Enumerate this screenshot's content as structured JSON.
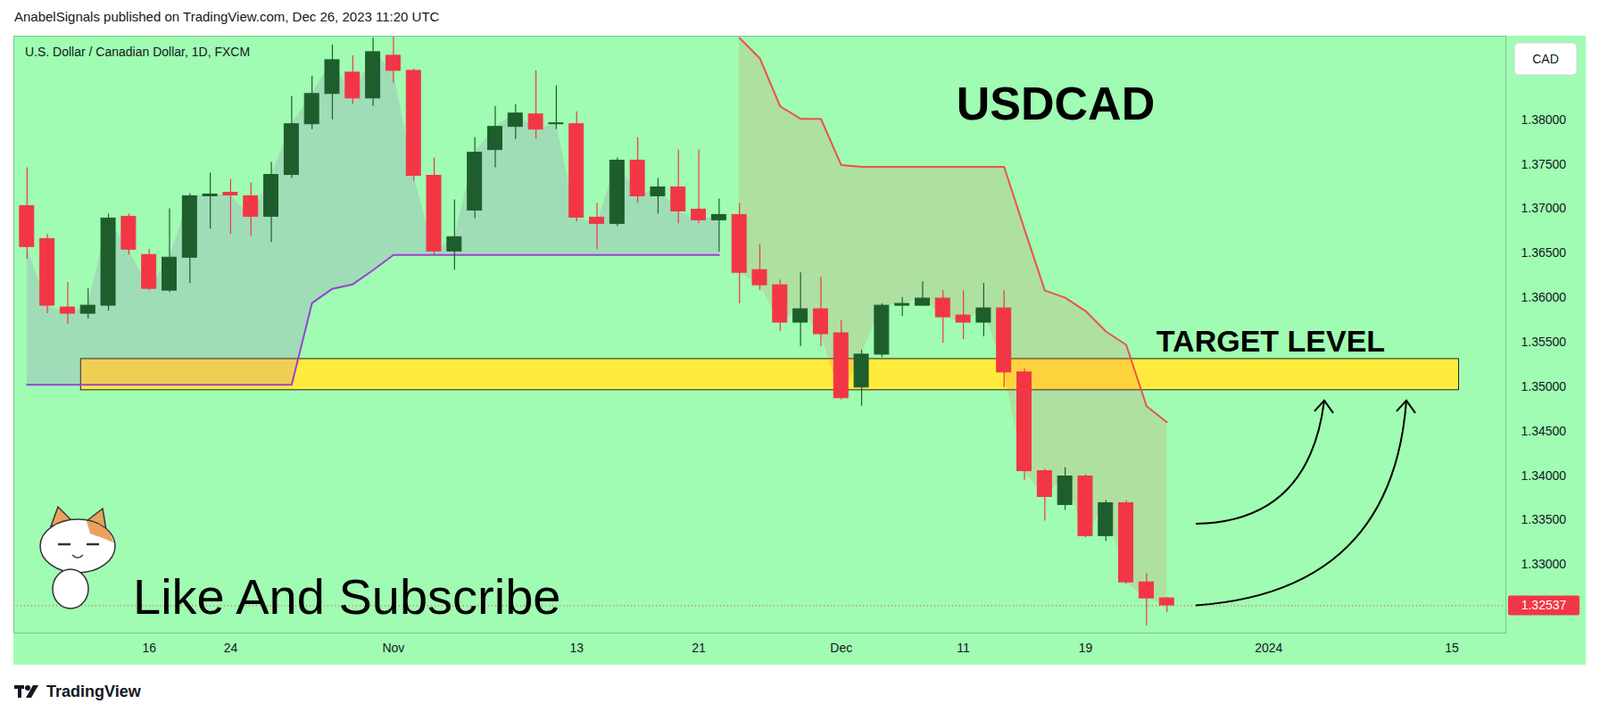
{
  "header": "AnabelSignals published on TradingView.com, Dec 26, 2023 11:20 UTC",
  "footer": "TradingView",
  "chart_data": {
    "type": "candlestick",
    "title": "USDCAD",
    "subtitle": "U.S. Dollar / Canadian Dollar, 1D, FXCM",
    "currency": "CAD",
    "annotations": [
      "Like And Subscribe"
    ],
    "categories": [
      null,
      null,
      null,
      null,
      null,
      null,
      "16",
      null,
      null,
      null,
      "24",
      null,
      null,
      null,
      null,
      null,
      null,
      null,
      "Nov",
      null,
      null,
      null,
      null,
      null,
      null,
      null,
      null,
      "13",
      null,
      null,
      null,
      null,
      null,
      "21",
      null,
      null,
      null,
      null,
      null,
      null,
      "Dec",
      null,
      null,
      null,
      null,
      null,
      "11",
      null,
      null,
      null,
      null,
      null,
      "19",
      null,
      null,
      null,
      null,
      null,
      null,
      null,
      null,
      "2024",
      null,
      null,
      null,
      null,
      null,
      null,
      null,
      null,
      "15",
      null,
      null
    ],
    "open": [
      1.3703,
      1.3666,
      1.3589,
      1.3582,
      1.3591,
      1.3691,
      1.3648,
      1.3608,
      1.3645,
      1.3714,
      1.3718,
      1.3714,
      1.3691,
      1.3738,
      1.3795,
      1.3829,
      1.3853,
      1.3824,
      1.3872,
      1.3855,
      1.3737,
      1.3652,
      1.3698,
      1.3766,
      1.3792,
      1.3806,
      1.3795,
      1.3795,
      1.369,
      1.3683,
      1.3754,
      1.3714,
      1.3724,
      1.3699,
      1.3687,
      1.3693,
      1.3631,
      1.3614,
      1.3572,
      1.3587,
      1.356,
      1.3499,
      1.3536,
      1.3591,
      1.3591,
      1.3599,
      1.358,
      1.3572,
      1.3588,
      1.3516,
      1.3405,
      1.3367,
      1.3399,
      1.3332,
      1.3369,
      1.328,
      1.3262,
      null,
      null,
      null,
      null,
      null,
      null,
      null,
      null,
      null,
      null,
      null,
      null,
      null,
      null,
      null,
      null
    ],
    "high": [
      1.3746,
      1.3671,
      1.3617,
      1.361,
      1.3694,
      1.3694,
      1.3654,
      1.37,
      1.3717,
      1.374,
      1.3733,
      1.3729,
      1.3752,
      1.3826,
      1.3849,
      1.3884,
      1.3872,
      1.3892,
      1.3893,
      1.3857,
      1.3757,
      1.371,
      1.378,
      1.3815,
      1.3817,
      1.3855,
      1.3838,
      1.3809,
      1.3706,
      1.3757,
      1.378,
      1.3734,
      1.3766,
      1.3766,
      1.3711,
      1.3706,
      1.366,
      1.362,
      1.3628,
      1.3623,
      1.3574,
      1.3541,
      1.3593,
      1.36,
      1.3618,
      1.3608,
      1.3608,
      1.3616,
      1.3608,
      1.352,
      1.3407,
      1.3409,
      1.3401,
      1.3372,
      1.3372,
      1.329,
      1.3263,
      null,
      null,
      null,
      null,
      null,
      null,
      null,
      null,
      null,
      null,
      null,
      null,
      null,
      null,
      null,
      null
    ],
    "low": [
      1.3643,
      1.3582,
      1.357,
      1.3576,
      1.3585,
      1.3648,
      1.3608,
      1.3606,
      1.3616,
      1.3677,
      1.3671,
      1.3669,
      1.3662,
      1.3734,
      1.3789,
      1.38,
      1.3817,
      1.3815,
      1.3841,
      1.3731,
      1.3648,
      1.3631,
      1.3689,
      1.3746,
      1.3778,
      1.3778,
      1.3789,
      1.3685,
      1.3654,
      1.368,
      1.3706,
      1.3694,
      1.3683,
      1.3683,
      1.3651,
      1.3593,
      1.3608,
      1.3562,
      1.3545,
      1.3545,
      1.3485,
      1.3478,
      1.3533,
      1.3579,
      1.3591,
      1.3549,
      1.3553,
      1.3556,
      1.3499,
      1.3395,
      1.3349,
      1.3361,
      1.333,
      1.3326,
      1.3278,
      1.3231,
      1.3246,
      null,
      null,
      null,
      null,
      null,
      null,
      null,
      null,
      null,
      null,
      null,
      null,
      null,
      null,
      null,
      null
    ],
    "close": [
      1.3657,
      1.3591,
      1.3582,
      1.3591,
      1.3689,
      1.3654,
      1.361,
      1.3645,
      1.3714,
      1.3716,
      1.3715,
      1.3691,
      1.3738,
      1.3795,
      1.3829,
      1.3867,
      1.3824,
      1.3876,
      1.3855,
      1.3737,
      1.3652,
      1.3668,
      1.3763,
      1.3792,
      1.3807,
      1.3789,
      1.3796,
      1.369,
      1.3683,
      1.3754,
      1.3714,
      1.3724,
      1.3697,
      1.3687,
      1.3693,
      1.3628,
      1.3614,
      1.3572,
      1.3587,
      1.3559,
      1.3487,
      1.3536,
      1.3591,
      1.3593,
      1.3599,
      1.3578,
      1.3572,
      1.3588,
      1.3516,
      1.3405,
      1.3376,
      1.3399,
      1.3332,
      1.3369,
      1.328,
      1.3262,
      1.3254,
      null,
      null,
      null,
      null,
      null,
      null,
      null,
      null,
      null,
      null,
      null,
      null,
      null,
      null,
      null,
      null
    ],
    "lines": [
      {
        "color": "#9c3fd6",
        "values": [
          1.3502,
          1.3502,
          1.3502,
          1.3502,
          1.3502,
          1.3502,
          1.3502,
          1.3502,
          1.3502,
          1.3502,
          1.3502,
          1.3502,
          1.3502,
          1.3502,
          1.3594,
          1.361,
          1.3615,
          1.3631,
          1.3648,
          1.3648,
          1.3648,
          1.3648,
          1.3648,
          1.3648,
          1.3648,
          1.3648,
          1.3648,
          1.3648,
          1.3648,
          1.3648,
          1.3648,
          1.3648,
          1.3648,
          1.3648,
          1.3648,
          null,
          null,
          null,
          null,
          null,
          null,
          null,
          null,
          null,
          null,
          null,
          null,
          null,
          null,
          null,
          null,
          null,
          null,
          null,
          null,
          null,
          null,
          null,
          null,
          null,
          null,
          null,
          null,
          null,
          null,
          null,
          null,
          null,
          null,
          null,
          null,
          null,
          null
        ]
      },
      {
        "color": "#f0504a",
        "values": [
          null,
          null,
          null,
          null,
          null,
          null,
          null,
          null,
          null,
          null,
          null,
          null,
          null,
          null,
          null,
          null,
          null,
          null,
          null,
          null,
          null,
          null,
          null,
          null,
          null,
          null,
          null,
          null,
          null,
          null,
          null,
          null,
          null,
          null,
          null,
          1.3892,
          1.3869,
          1.3815,
          1.3801,
          1.3801,
          1.3749,
          1.3747,
          1.3747,
          1.3747,
          1.3747,
          1.3747,
          1.3747,
          1.3747,
          1.3747,
          1.3677,
          1.3608,
          1.36,
          1.3585,
          1.3562,
          1.3547,
          1.3478,
          1.346,
          null,
          null,
          null,
          null,
          null,
          null,
          null,
          null,
          null,
          null,
          null,
          null,
          null,
          null,
          null,
          null
        ]
      }
    ],
    "target_zone": {
      "label": "TARGET LEVEL",
      "low": 1.3496,
      "high": 1.3531,
      "from": 3,
      "to": 70
    },
    "last_price": 1.32537,
    "ylim": [
      1.3223,
      1.3894
    ],
    "yticks": [
      {
        "value": 1.33,
        "label": "1.33000"
      },
      {
        "value": 1.335,
        "label": "1.33500"
      },
      {
        "value": 1.34,
        "label": "1.34000"
      },
      {
        "value": 1.345,
        "label": "1.34500"
      },
      {
        "value": 1.35,
        "label": "1.35000"
      },
      {
        "value": 1.355,
        "label": "1.35500"
      },
      {
        "value": 1.36,
        "label": "1.36000"
      },
      {
        "value": 1.365,
        "label": "1.36500"
      },
      {
        "value": 1.37,
        "label": "1.37000"
      },
      {
        "value": 1.375,
        "label": "1.37500"
      },
      {
        "value": 1.38,
        "label": "1.38000"
      }
    ]
  }
}
